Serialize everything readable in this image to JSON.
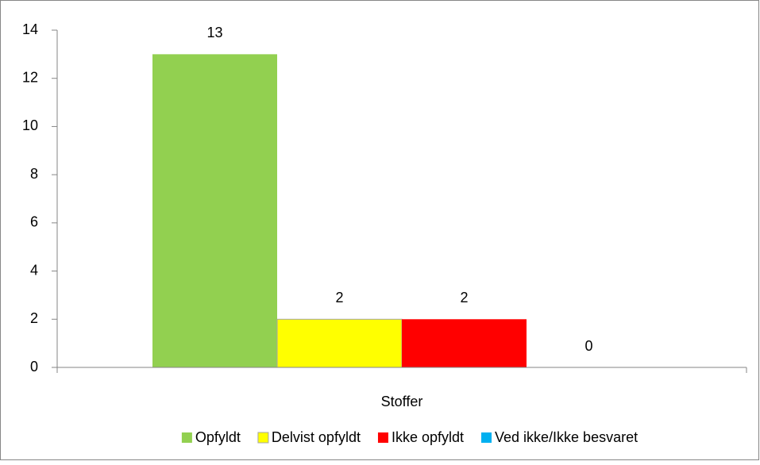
{
  "chart_data": {
    "type": "bar",
    "categories": [
      "Stoffer"
    ],
    "series": [
      {
        "name": "Opfyldt",
        "color": "#92d050",
        "values": [
          13
        ]
      },
      {
        "name": "Delvist opfyldt",
        "color": "#ffff00",
        "values": [
          2
        ]
      },
      {
        "name": "Ikke opfyldt",
        "color": "#ff0000",
        "values": [
          2
        ]
      },
      {
        "name": "Ved ikke/Ikke besvaret",
        "color": "#00b0f0",
        "values": [
          0
        ]
      }
    ],
    "ylim": [
      0,
      14
    ],
    "yticks": [
      0,
      2,
      4,
      6,
      8,
      10,
      12,
      14
    ],
    "grid": false,
    "legend": "bottom",
    "data_labels": true
  }
}
